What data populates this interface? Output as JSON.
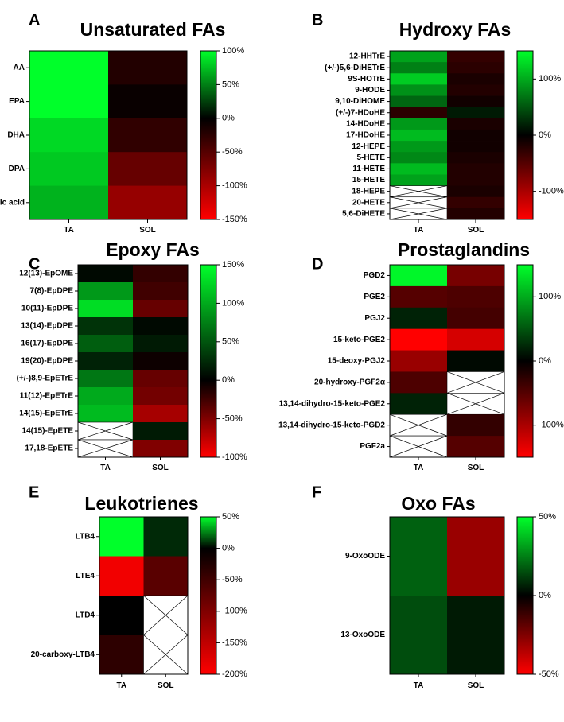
{
  "figure": {
    "colors": {
      "positive": "#00ff2a",
      "zero": "#000000",
      "negative": "#ff0000",
      "missing_fill": "#ffffff",
      "cross_line": "#000000"
    }
  },
  "chart_data": [
    {
      "panel_label": "A",
      "title": "Unsaturated FAs",
      "type": "heatmap",
      "columns": [
        "TA",
        "SOL"
      ],
      "rows": [
        "AA",
        "EPA",
        "DHA",
        "DPA",
        "Adrenic acid"
      ],
      "values": [
        [
          108,
          -20
        ],
        [
          104,
          -5
        ],
        [
          85,
          -28
        ],
        [
          79,
          -60
        ],
        [
          70,
          -88
        ]
      ],
      "colorbar": {
        "min": -150,
        "max": 100,
        "ticks": [
          "100%",
          "50%",
          "0%",
          "-50%",
          "-100%",
          "-150%"
        ],
        "tick_values": [
          100,
          50,
          0,
          -50,
          -100,
          -150
        ]
      }
    },
    {
      "panel_label": "B",
      "title": "Hydroxy FAs",
      "type": "heatmap",
      "columns": [
        "TA",
        "SOL"
      ],
      "rows": [
        "12-HHTrE",
        "(+/-)5,6-DiHETrE",
        "9S-HOTrE",
        "9-HODE",
        "9,10-DiHOME",
        "(+/-)7-HDoHE",
        "14-HDoHE",
        "17-HDoHE",
        "12-HEPE",
        "5-HETE",
        "11-HETE",
        "15-HETE",
        "18-HEPE",
        "20-HETE",
        "5,6-DiHETE"
      ],
      "values": [
        [
          95,
          -30
        ],
        [
          75,
          -25
        ],
        [
          120,
          -15
        ],
        [
          85,
          -20
        ],
        [
          60,
          -10
        ],
        [
          -25,
          15
        ],
        [
          90,
          -15
        ],
        [
          110,
          -10
        ],
        [
          90,
          -10
        ],
        [
          80,
          -15
        ],
        [
          110,
          -20
        ],
        [
          95,
          -20
        ],
        [
          null,
          -15
        ],
        [
          null,
          -30
        ],
        [
          null,
          -20
        ]
      ],
      "colorbar": {
        "min": -150,
        "max": 150,
        "ticks": [
          "100%",
          "0%",
          "-100%"
        ],
        "tick_values": [
          100,
          0,
          -100
        ]
      }
    },
    {
      "panel_label": "C",
      "title": "Epoxy FAs",
      "type": "heatmap",
      "columns": [
        "TA",
        "SOL"
      ],
      "rows": [
        "12(13)-EpOME",
        "7(8)-EpDPE",
        "10(11)-EpDPE",
        "13(14)-EpDPE",
        "16(17)-EpDPE",
        "19(20)-EpDPE",
        "(+/-)8,9-EpETrE",
        "11(12)-EpETrE",
        "14(15)-EpETrE",
        "14(15)-EpETE",
        "17,18-EpETE"
      ],
      "values": [
        [
          5,
          -20
        ],
        [
          90,
          -25
        ],
        [
          130,
          -40
        ],
        [
          30,
          5
        ],
        [
          55,
          15
        ],
        [
          20,
          -5
        ],
        [
          70,
          -40
        ],
        [
          100,
          -45
        ],
        [
          110,
          -65
        ],
        [
          null,
          15
        ],
        [
          null,
          -50
        ]
      ],
      "colorbar": {
        "min": -100,
        "max": 150,
        "ticks": [
          "150%",
          "100%",
          "50%",
          "0%",
          "-50%",
          "-100%"
        ],
        "tick_values": [
          150,
          100,
          50,
          0,
          -50,
          -100
        ]
      }
    },
    {
      "panel_label": "D",
      "title": "Prostaglandins",
      "type": "heatmap",
      "columns": [
        "TA",
        "SOL"
      ],
      "rows": [
        "PGD2",
        "PGE2",
        "PGJ2",
        "15-keto-PGE2",
        "15-deoxy-PGJ2",
        "20-hydroxy-PGF2α",
        "13,14-dihydro-15-keto-PGE2",
        "13,14-dihydro-15-keto-PGD2",
        "PGF2a"
      ],
      "values": [
        [
          145,
          -70
        ],
        [
          -50,
          -45
        ],
        [
          20,
          -40
        ],
        [
          -150,
          -125
        ],
        [
          -90,
          5
        ],
        [
          -45,
          null
        ],
        [
          20,
          null
        ],
        [
          null,
          -30
        ],
        [
          null,
          -50
        ]
      ],
      "colorbar": {
        "min": -150,
        "max": 150,
        "ticks": [
          "100%",
          "0%",
          "-100%"
        ],
        "tick_values": [
          100,
          0,
          -100
        ]
      }
    },
    {
      "panel_label": "E",
      "title": "Leukotrienes",
      "type": "heatmap",
      "columns": [
        "TA",
        "SOL"
      ],
      "rows": [
        "LTB4",
        "LTE4",
        "LTD4",
        "20-carboxy-LTB4"
      ],
      "values": [
        [
          50,
          8
        ],
        [
          -190,
          -70
        ],
        [
          0,
          null
        ],
        [
          -35,
          null
        ]
      ],
      "colorbar": {
        "min": -200,
        "max": 50,
        "ticks": [
          "50%",
          "0%",
          "-50%",
          "-100%",
          "-150%",
          "-200%"
        ],
        "tick_values": [
          50,
          0,
          -50,
          -100,
          -150,
          -200
        ]
      }
    },
    {
      "panel_label": "F",
      "title": "Oxo FAs",
      "type": "heatmap",
      "columns": [
        "TA",
        "SOL"
      ],
      "rows": [
        "9-OxoODE",
        "13-OxoODE"
      ],
      "values": [
        [
          19,
          -30
        ],
        [
          15,
          5
        ]
      ],
      "colorbar": {
        "min": -50,
        "max": 50,
        "ticks": [
          "50%",
          "0%",
          "-50%"
        ],
        "tick_values": [
          50,
          0,
          -50
        ]
      }
    }
  ]
}
